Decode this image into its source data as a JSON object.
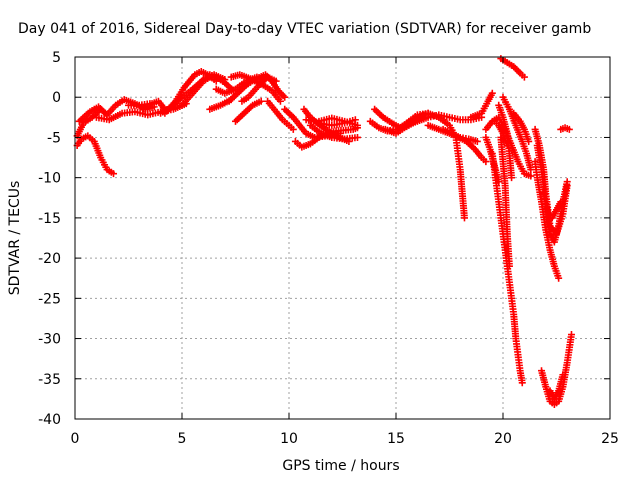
{
  "chart_data": {
    "type": "scatter",
    "title": "Day 041 of 2016, Sidereal Day-to-day VTEC variation (SDTVAR) for receiver gamb",
    "xlabel": "GPS time / hours",
    "ylabel": "SDTVAR / TECUs",
    "xlim": [
      0,
      25
    ],
    "ylim": [
      -40,
      5
    ],
    "xticks": [
      "0",
      "5",
      "10",
      "15",
      "20",
      "25"
    ],
    "yticks": [
      "5",
      "0",
      "-5",
      "-10",
      "-15",
      "-20",
      "-25",
      "-30",
      "-35",
      "-40"
    ],
    "grid": true,
    "marker": "plus",
    "color": "#ff0000",
    "tracks": [
      [
        [
          0.1,
          -4.8
        ],
        [
          0.4,
          -3.2
        ],
        [
          0.8,
          -2.5
        ],
        [
          1.2,
          -1.5
        ]
      ],
      [
        [
          0.1,
          -6.0
        ],
        [
          0.3,
          -5.2
        ],
        [
          0.6,
          -4.8
        ],
        [
          0.9,
          -5.5
        ],
        [
          1.2,
          -7.5
        ],
        [
          1.5,
          -9.0
        ],
        [
          1.8,
          -9.5
        ]
      ],
      [
        [
          0.2,
          -3.0
        ],
        [
          0.7,
          -1.8
        ],
        [
          1.1,
          -1.2
        ],
        [
          1.5,
          -2.2
        ],
        [
          1.9,
          -1.0
        ],
        [
          2.3,
          -0.3
        ],
        [
          2.8,
          -0.8
        ],
        [
          3.3,
          -1.5
        ],
        [
          3.7,
          -1.2
        ]
      ],
      [
        [
          1.0,
          -2.5
        ],
        [
          1.6,
          -2.8
        ],
        [
          2.2,
          -2.0
        ],
        [
          2.8,
          -1.8
        ],
        [
          3.4,
          -2.2
        ],
        [
          4.0,
          -1.8
        ],
        [
          4.6,
          -1.5
        ],
        [
          5.2,
          -0.8
        ]
      ],
      [
        [
          3.2,
          -1.5
        ],
        [
          3.6,
          -0.8
        ],
        [
          3.9,
          -0.5
        ],
        [
          4.2,
          -1.5
        ]
      ],
      [
        [
          2.5,
          -1.0
        ],
        [
          3.0,
          -1.0
        ],
        [
          3.5,
          -0.8
        ]
      ],
      [
        [
          4.0,
          -2.0
        ],
        [
          4.5,
          -1.2
        ],
        [
          5.0,
          0.0
        ],
        [
          5.5,
          1.0
        ],
        [
          6.0,
          2.2
        ],
        [
          6.3,
          2.8
        ],
        [
          6.6,
          2.5
        ],
        [
          7.0,
          1.8
        ],
        [
          7.4,
          0.8
        ]
      ],
      [
        [
          4.2,
          -2.0
        ],
        [
          4.7,
          -0.5
        ],
        [
          5.1,
          1.2
        ],
        [
          5.6,
          2.8
        ],
        [
          5.9,
          3.2
        ],
        [
          6.2,
          2.8
        ],
        [
          6.6,
          2.0
        ]
      ],
      [
        [
          5.0,
          -1.0
        ],
        [
          5.5,
          0.5
        ],
        [
          6.0,
          2.0
        ],
        [
          6.5,
          2.8
        ],
        [
          7.0,
          2.2
        ]
      ],
      [
        [
          6.6,
          1.0
        ],
        [
          7.0,
          0.5
        ],
        [
          7.5,
          1.0
        ],
        [
          8.0,
          2.0
        ],
        [
          8.5,
          2.5
        ],
        [
          8.8,
          2.2
        ]
      ],
      [
        [
          7.2,
          -0.5
        ],
        [
          7.6,
          0.5
        ],
        [
          8.0,
          1.5
        ],
        [
          8.4,
          2.2
        ],
        [
          8.9,
          2.8
        ],
        [
          9.2,
          2.0
        ],
        [
          9.5,
          0.8
        ],
        [
          9.8,
          0.0
        ]
      ],
      [
        [
          7.3,
          2.5
        ],
        [
          7.7,
          2.8
        ],
        [
          8.2,
          2.3
        ],
        [
          8.8,
          1.5
        ],
        [
          9.2,
          0.8
        ],
        [
          9.6,
          -0.5
        ]
      ],
      [
        [
          7.5,
          -3.0
        ],
        [
          7.9,
          -2.0
        ],
        [
          8.3,
          -1.0
        ],
        [
          8.7,
          -0.5
        ]
      ],
      [
        [
          6.3,
          -1.5
        ],
        [
          6.8,
          -1.0
        ],
        [
          7.3,
          -0.3
        ]
      ],
      [
        [
          7.8,
          -0.5
        ],
        [
          8.1,
          0.0
        ],
        [
          8.6,
          1.5
        ],
        [
          9.0,
          2.5
        ],
        [
          9.4,
          2.0
        ]
      ],
      [
        [
          9.0,
          -0.5
        ],
        [
          9.4,
          -1.8
        ],
        [
          9.7,
          -2.8
        ],
        [
          10.0,
          -3.5
        ],
        [
          10.2,
          -4.0
        ]
      ],
      [
        [
          9.8,
          -1.5
        ],
        [
          10.2,
          -2.5
        ],
        [
          10.5,
          -3.5
        ],
        [
          10.8,
          -4.5
        ],
        [
          11.2,
          -5.0
        ],
        [
          11.8,
          -4.8
        ],
        [
          12.4,
          -4.5
        ]
      ],
      [
        [
          10.3,
          -5.5
        ],
        [
          10.6,
          -6.2
        ],
        [
          11.0,
          -5.8
        ],
        [
          11.5,
          -4.8
        ],
        [
          12.2,
          -4.2
        ],
        [
          13.0,
          -4.0
        ],
        [
          13.2,
          -3.8
        ]
      ],
      [
        [
          10.8,
          -2.8
        ],
        [
          11.4,
          -3.2
        ],
        [
          12.0,
          -3.5
        ],
        [
          12.6,
          -3.2
        ],
        [
          13.1,
          -2.8
        ]
      ],
      [
        [
          11.0,
          -3.5
        ],
        [
          11.5,
          -4.5
        ],
        [
          12.0,
          -5.0
        ],
        [
          12.6,
          -5.2
        ],
        [
          13.2,
          -5.0
        ]
      ],
      [
        [
          10.7,
          -1.5
        ],
        [
          11.0,
          -2.5
        ],
        [
          11.6,
          -3.8
        ],
        [
          12.2,
          -4.8
        ],
        [
          12.8,
          -5.5
        ]
      ],
      [
        [
          11.4,
          -3.0
        ],
        [
          12.0,
          -2.6
        ],
        [
          12.6,
          -3.0
        ],
        [
          13.2,
          -3.5
        ]
      ],
      [
        [
          13.8,
          -3.0
        ],
        [
          14.2,
          -3.8
        ],
        [
          14.6,
          -4.2
        ],
        [
          15.0,
          -4.0
        ],
        [
          15.4,
          -3.5
        ],
        [
          15.8,
          -3.0
        ],
        [
          16.2,
          -2.5
        ]
      ],
      [
        [
          14.0,
          -1.5
        ],
        [
          14.4,
          -2.5
        ],
        [
          14.8,
          -3.2
        ],
        [
          15.2,
          -3.8
        ],
        [
          15.6,
          -3.0
        ],
        [
          16.0,
          -2.2
        ],
        [
          16.5,
          -2.0
        ]
      ],
      [
        [
          14.5,
          -4.0
        ],
        [
          15.0,
          -4.5
        ],
        [
          15.4,
          -3.8
        ],
        [
          15.8,
          -3.2
        ]
      ],
      [
        [
          15.5,
          -3.5
        ],
        [
          16.0,
          -3.0
        ],
        [
          16.5,
          -2.5
        ],
        [
          17.0,
          -2.2
        ],
        [
          17.5,
          -2.5
        ],
        [
          18.0,
          -2.8
        ],
        [
          18.5,
          -2.8
        ],
        [
          19.0,
          -2.5
        ]
      ],
      [
        [
          16.0,
          -2.5
        ],
        [
          16.5,
          -2.0
        ],
        [
          17.0,
          -2.5
        ],
        [
          17.5,
          -3.5
        ],
        [
          17.8,
          -5.0
        ],
        [
          17.9,
          -7.0
        ],
        [
          18.0,
          -9.0
        ],
        [
          18.1,
          -12.0
        ],
        [
          18.2,
          -15.0
        ]
      ],
      [
        [
          16.5,
          -3.5
        ],
        [
          17.0,
          -4.0
        ],
        [
          17.5,
          -4.5
        ],
        [
          18.0,
          -5.0
        ],
        [
          18.4,
          -5.2
        ],
        [
          18.8,
          -5.5
        ]
      ],
      [
        [
          17.2,
          -4.0
        ],
        [
          17.8,
          -4.8
        ],
        [
          18.3,
          -5.5
        ],
        [
          18.7,
          -6.5
        ],
        [
          19.0,
          -7.5
        ],
        [
          19.2,
          -8.0
        ]
      ],
      [
        [
          18.5,
          -2.5
        ],
        [
          19.0,
          -2.0
        ],
        [
          19.3,
          -0.5
        ],
        [
          19.5,
          0.5
        ]
      ],
      [
        [
          19.2,
          -4.0
        ],
        [
          19.5,
          -3.0
        ],
        [
          19.8,
          -2.5
        ],
        [
          20.1,
          -4.0
        ],
        [
          20.4,
          -6.0
        ],
        [
          20.7,
          -8.0
        ],
        [
          21.0,
          -9.5
        ],
        [
          21.3,
          -9.8
        ]
      ],
      [
        [
          19.6,
          -3.0
        ],
        [
          19.8,
          -3.5
        ],
        [
          20.0,
          -4.5
        ],
        [
          20.2,
          -6.0
        ]
      ],
      [
        [
          19.8,
          -1.0
        ],
        [
          20.0,
          -2.5
        ],
        [
          20.2,
          -4.5
        ],
        [
          20.3,
          -7.0
        ],
        [
          20.4,
          -10.0
        ]
      ],
      [
        [
          19.5,
          -7.0
        ],
        [
          19.6,
          -9.0
        ],
        [
          19.7,
          -11.0
        ],
        [
          19.8,
          -13.0
        ],
        [
          19.9,
          -15.0
        ],
        [
          20.0,
          -17.0
        ],
        [
          20.1,
          -19.0
        ],
        [
          20.2,
          -21.0
        ],
        [
          20.3,
          -23.0
        ],
        [
          20.4,
          -25.0
        ],
        [
          20.5,
          -27.0
        ],
        [
          20.6,
          -30.0
        ],
        [
          20.7,
          -32.0
        ],
        [
          20.8,
          -34.0
        ],
        [
          20.9,
          -35.5
        ]
      ],
      [
        [
          19.9,
          -5.0
        ],
        [
          20.0,
          -8.0
        ],
        [
          20.1,
          -11.0
        ],
        [
          20.15,
          -14.0
        ],
        [
          20.2,
          -17.0
        ],
        [
          20.3,
          -21.0
        ]
      ],
      [
        [
          19.2,
          -5.0
        ],
        [
          19.4,
          -6.5
        ],
        [
          19.6,
          -8.5
        ],
        [
          19.8,
          -10.5
        ]
      ],
      [
        [
          19.9,
          4.8
        ],
        [
          20.2,
          4.3
        ],
        [
          20.5,
          3.8
        ],
        [
          20.8,
          3.0
        ],
        [
          21.0,
          2.5
        ]
      ],
      [
        [
          20.0,
          0.0
        ],
        [
          20.3,
          -1.5
        ],
        [
          20.6,
          -3.5
        ],
        [
          20.9,
          -5.5
        ],
        [
          21.1,
          -7.0
        ],
        [
          21.3,
          -9.0
        ]
      ],
      [
        [
          20.5,
          -2.0
        ],
        [
          20.8,
          -3.0
        ],
        [
          21.0,
          -4.0
        ],
        [
          21.2,
          -5.5
        ]
      ],
      [
        [
          21.5,
          -4.0
        ],
        [
          21.7,
          -6.0
        ],
        [
          21.9,
          -9.0
        ],
        [
          22.0,
          -12.0
        ],
        [
          22.1,
          -14.0
        ],
        [
          22.2,
          -16.0
        ],
        [
          22.5,
          -17.0
        ],
        [
          22.8,
          -14.5
        ],
        [
          23.0,
          -11.0
        ]
      ],
      [
        [
          21.6,
          -6.0
        ],
        [
          21.8,
          -9.0
        ],
        [
          22.0,
          -13.0
        ],
        [
          22.2,
          -17.0
        ],
        [
          22.4,
          -18.0
        ],
        [
          22.6,
          -16.0
        ],
        [
          22.8,
          -13.0
        ],
        [
          23.0,
          -10.5
        ]
      ],
      [
        [
          21.5,
          -8.0
        ],
        [
          21.6,
          -10.0
        ],
        [
          21.8,
          -13.0
        ],
        [
          22.0,
          -16.5
        ],
        [
          22.2,
          -19.0
        ],
        [
          22.4,
          -21.0
        ],
        [
          22.6,
          -22.5
        ]
      ],
      [
        [
          21.9,
          -12.0
        ],
        [
          22.1,
          -14.5
        ],
        [
          22.3,
          -15.0
        ],
        [
          22.5,
          -14.0
        ],
        [
          22.7,
          -13.0
        ]
      ],
      [
        [
          22.7,
          -4.0
        ],
        [
          22.9,
          -3.8
        ],
        [
          23.1,
          -4.0
        ]
      ],
      [
        [
          21.8,
          -34.0
        ],
        [
          22.0,
          -36.0
        ],
        [
          22.2,
          -37.8
        ],
        [
          22.4,
          -38.2
        ],
        [
          22.6,
          -37.8
        ],
        [
          22.8,
          -36.0
        ],
        [
          23.0,
          -33.0
        ],
        [
          23.2,
          -29.5
        ]
      ],
      [
        [
          22.2,
          -36.5
        ],
        [
          22.4,
          -37.5
        ],
        [
          22.6,
          -36.5
        ],
        [
          22.8,
          -34.5
        ]
      ]
    ]
  }
}
